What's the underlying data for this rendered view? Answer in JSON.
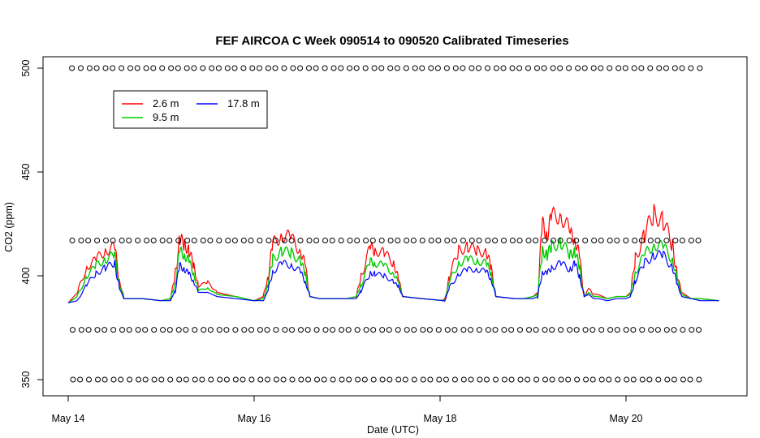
{
  "chart_data": {
    "type": "line",
    "title": "FEF AIRCOA C  Week 090514 to 090520  Calibrated Timeseries",
    "xlabel": "Date (UTC)",
    "ylabel": "CO2 (ppm)",
    "xlim": [
      0,
      7.0
    ],
    "ylim": [
      345,
      505
    ],
    "x_ticks": [
      {
        "value": 0,
        "label": "May 14"
      },
      {
        "value": 2,
        "label": "May 16"
      },
      {
        "value": 4,
        "label": "May 18"
      },
      {
        "value": 6,
        "label": "May 20"
      }
    ],
    "y_ticks": [
      350,
      400,
      450,
      500
    ],
    "x_units": "days since May 14 00:00 UTC",
    "legend": {
      "position": "top-left",
      "entries": [
        {
          "name": "2.6 m",
          "color": "#ff0000"
        },
        {
          "name": "9.5 m",
          "color": "#00cc00"
        },
        {
          "name": "17.8 m",
          "color": "#0000ff"
        }
      ]
    },
    "series": [
      {
        "name": "2.6 m",
        "color": "#ff0000",
        "x": [
          0.0,
          0.1,
          0.2,
          0.3,
          0.4,
          0.5,
          0.55,
          0.6,
          0.65,
          0.8,
          1.0,
          1.1,
          1.15,
          1.2,
          1.25,
          1.3,
          1.35,
          1.4,
          1.5,
          1.6,
          1.8,
          2.0,
          2.1,
          2.15,
          2.2,
          2.3,
          2.4,
          2.5,
          2.55,
          2.6,
          2.7,
          3.0,
          3.1,
          3.15,
          3.25,
          3.3,
          3.4,
          3.5,
          3.55,
          3.6,
          3.8,
          4.05,
          4.1,
          4.2,
          4.3,
          4.4,
          4.5,
          4.55,
          4.6,
          4.8,
          4.9,
          5.0,
          5.05,
          5.1,
          5.15,
          5.2,
          5.3,
          5.4,
          5.45,
          5.5,
          5.55,
          5.6,
          5.65,
          5.7,
          5.8,
          5.9,
          6.0,
          6.05,
          6.1,
          6.2,
          6.3,
          6.4,
          6.5,
          6.55,
          6.6,
          6.7,
          6.8,
          7.0
        ],
        "values": [
          387,
          392,
          404,
          408,
          412,
          414,
          398,
          389,
          389,
          389,
          388,
          389,
          400,
          418,
          415,
          412,
          405,
          395,
          397,
          392,
          390,
          388,
          390,
          400,
          415,
          420,
          418,
          412,
          405,
          390,
          389,
          389,
          390,
          400,
          414,
          412,
          411,
          406,
          399,
          390,
          389,
          388,
          400,
          412,
          414,
          412,
          411,
          404,
          390,
          389,
          389,
          390,
          392,
          425,
          420,
          428,
          430,
          420,
          418,
          409,
          390,
          394,
          391,
          391,
          389,
          390,
          390,
          392,
          408,
          420,
          430,
          426,
          415,
          400,
          392,
          389,
          389,
          388
        ]
      },
      {
        "name": "9.5 m",
        "color": "#00cc00",
        "x": [
          0.0,
          0.1,
          0.2,
          0.3,
          0.4,
          0.5,
          0.55,
          0.6,
          0.65,
          0.8,
          1.0,
          1.1,
          1.15,
          1.2,
          1.25,
          1.3,
          1.35,
          1.4,
          1.5,
          1.6,
          1.8,
          2.0,
          2.1,
          2.15,
          2.2,
          2.3,
          2.4,
          2.5,
          2.55,
          2.6,
          2.7,
          3.0,
          3.1,
          3.15,
          3.25,
          3.3,
          3.4,
          3.5,
          3.55,
          3.6,
          3.8,
          4.05,
          4.1,
          4.2,
          4.3,
          4.4,
          4.5,
          4.55,
          4.6,
          4.8,
          4.9,
          5.0,
          5.05,
          5.1,
          5.15,
          5.2,
          5.3,
          5.4,
          5.45,
          5.5,
          5.55,
          5.6,
          5.65,
          5.7,
          5.8,
          5.9,
          6.0,
          6.05,
          6.1,
          6.2,
          6.3,
          6.4,
          6.5,
          6.55,
          6.6,
          6.7,
          6.8,
          7.0
        ],
        "values": [
          387,
          390,
          400,
          405,
          408,
          410,
          396,
          389,
          389,
          389,
          388,
          389,
          396,
          412,
          410,
          407,
          401,
          393,
          394,
          391,
          390,
          388,
          389,
          396,
          408,
          412,
          411,
          407,
          401,
          390,
          389,
          389,
          390,
          396,
          407,
          406,
          405,
          401,
          397,
          390,
          389,
          388,
          397,
          406,
          408,
          407,
          406,
          401,
          390,
          389,
          389,
          390,
          391,
          412,
          410,
          414,
          416,
          410,
          412,
          404,
          390,
          392,
          390,
          390,
          389,
          390,
          390,
          391,
          402,
          410,
          415,
          414,
          408,
          398,
          391,
          389,
          389,
          388
        ]
      },
      {
        "name": "17.8 m",
        "color": "#0000ff",
        "x": [
          0.0,
          0.1,
          0.2,
          0.3,
          0.4,
          0.5,
          0.55,
          0.6,
          0.65,
          0.8,
          1.0,
          1.1,
          1.15,
          1.2,
          1.25,
          1.3,
          1.35,
          1.4,
          1.5,
          1.6,
          1.8,
          2.0,
          2.1,
          2.15,
          2.2,
          2.3,
          2.4,
          2.5,
          2.55,
          2.6,
          2.7,
          3.0,
          3.1,
          3.15,
          3.25,
          3.3,
          3.4,
          3.5,
          3.55,
          3.6,
          3.8,
          4.05,
          4.1,
          4.2,
          4.3,
          4.4,
          4.5,
          4.55,
          4.6,
          4.8,
          4.9,
          5.0,
          5.05,
          5.1,
          5.15,
          5.2,
          5.3,
          5.4,
          5.45,
          5.5,
          5.55,
          5.6,
          5.65,
          5.7,
          5.8,
          5.9,
          6.0,
          6.05,
          6.1,
          6.2,
          6.3,
          6.4,
          6.5,
          6.55,
          6.6,
          6.7,
          6.8,
          7.0
        ],
        "values": [
          387,
          388,
          396,
          401,
          404,
          406,
          394,
          389,
          389,
          389,
          388,
          388,
          393,
          405,
          403,
          401,
          397,
          392,
          392,
          390,
          389,
          388,
          388,
          393,
          402,
          406,
          405,
          402,
          397,
          390,
          389,
          389,
          389,
          393,
          401,
          401,
          400,
          397,
          395,
          390,
          389,
          388,
          394,
          401,
          403,
          403,
          402,
          398,
          390,
          389,
          389,
          389,
          390,
          402,
          401,
          404,
          406,
          403,
          406,
          400,
          390,
          391,
          389,
          389,
          388,
          389,
          389,
          390,
          398,
          406,
          410,
          410,
          404,
          396,
          390,
          389,
          388,
          388
        ]
      }
    ],
    "calibration_markers": {
      "description": "open circles at calibration tank levels",
      "levels": [
        500,
        417,
        374,
        350
      ]
    }
  }
}
